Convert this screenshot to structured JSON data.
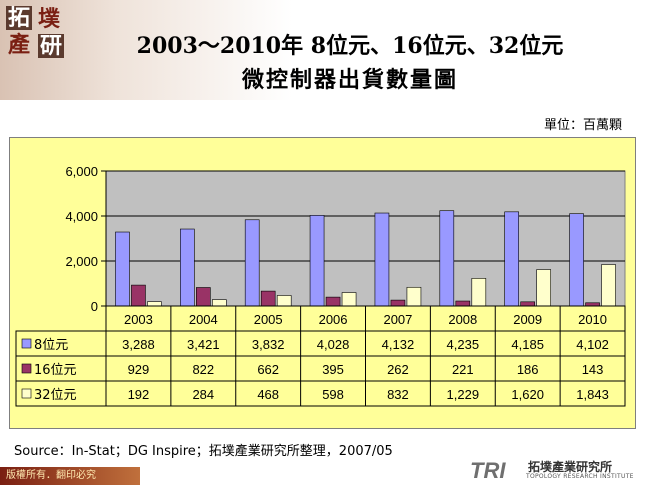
{
  "logo": {
    "chars": [
      "拓",
      "墣",
      "產",
      "研"
    ]
  },
  "title_line1": "2003～2010年 8位元、16位元、32位元",
  "title_line2": "微控制器出貨數量圖",
  "unit_label": "單位：百萬顆",
  "source": "Source：In-Stat；DG Inspire；拓墣產業研究所整理，2007/05",
  "footer_left": "版權所有．翻印必究",
  "brand": {
    "tri": "TRI",
    "zh": "拓墣產業研究所",
    "en": "TOPOLOGY RESEARCH INSTITUTE"
  },
  "colors": {
    "s8": "#9999ff",
    "s16": "#993366",
    "s32": "#ffffcc",
    "plot_bg": "#c0c0c0",
    "panel_bg": "#ffff99"
  },
  "chart_data": {
    "type": "bar",
    "categories": [
      "2003",
      "2004",
      "2005",
      "2006",
      "2007",
      "2008",
      "2009",
      "2010"
    ],
    "series": [
      {
        "name": "8位元",
        "values": [
          3288,
          3421,
          3832,
          4028,
          4132,
          4235,
          4185,
          4102
        ],
        "labels": [
          "3,288",
          "3,421",
          "3,832",
          "4,028",
          "4,132",
          "4,235",
          "4,185",
          "4,102"
        ]
      },
      {
        "name": "16位元",
        "values": [
          929,
          822,
          662,
          395,
          262,
          221,
          186,
          143
        ],
        "labels": [
          "929",
          "822",
          "662",
          "395",
          "262",
          "221",
          "186",
          "143"
        ]
      },
      {
        "name": "32位元",
        "values": [
          192,
          284,
          468,
          598,
          832,
          1229,
          1620,
          1843
        ],
        "labels": [
          "192",
          "284",
          "468",
          "598",
          "832",
          "1,229",
          "1,620",
          "1,843"
        ]
      }
    ],
    "ylim": [
      0,
      6000
    ],
    "yticks": [
      0,
      2000,
      4000,
      6000
    ],
    "ytick_labels": [
      "0",
      "2,000",
      "4,000",
      "6,000"
    ],
    "grid": true,
    "legend": "data-table"
  }
}
